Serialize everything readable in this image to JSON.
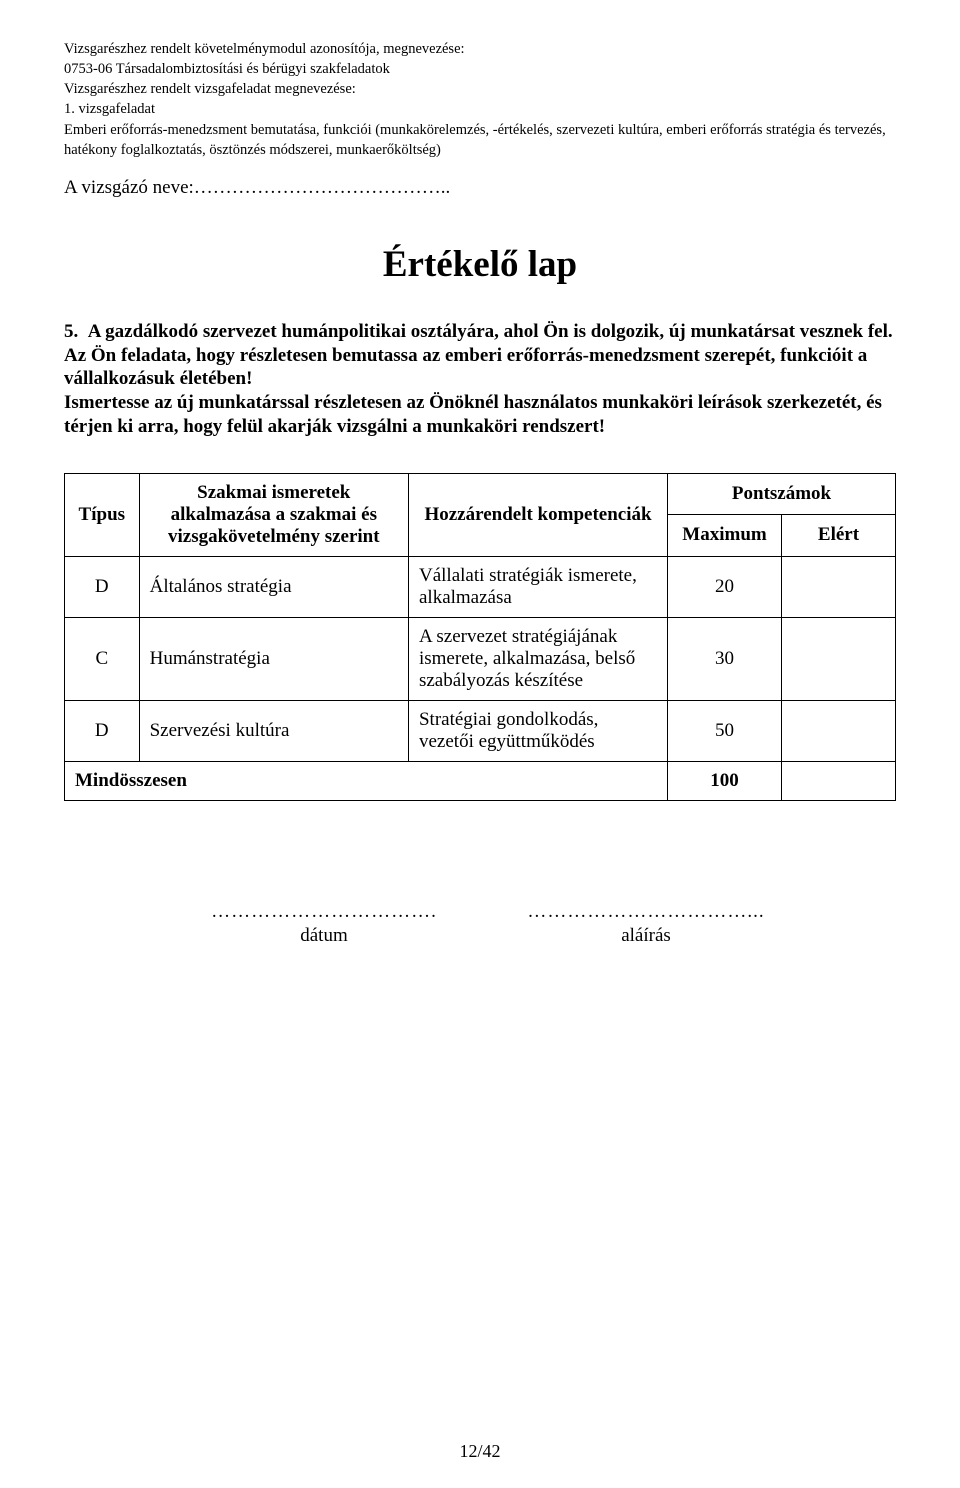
{
  "header": {
    "l1": "Vizsgarészhez rendelt követelménymodul azonosítója, megnevezése:",
    "l2": "0753-06 Társadalombiztosítási és bérügyi szakfeladatok",
    "l3": "Vizsgarészhez rendelt vizsgafeladat megnevezése:",
    "l4": "1. vizsgafeladat",
    "l5": "Emberi erőforrás-menedzsment bemutatása, funkciói (munkakörelemzés, -értékelés, szervezeti kultúra, emberi erőforrás stratégia és tervezés,",
    "l6": "hatékony foglalkoztatás, ösztönzés módszerei, munkaerőköltség)"
  },
  "nameLine": "A vizsgázó neve:…………………………………..",
  "title": "Értékelő lap",
  "task": {
    "num": "5.",
    "p1": "A gazdálkodó szervezet humánpolitikai osztályára, ahol Ön is dolgozik, új munkatársat vesznek fel. Az Ön feladata, hogy részletesen bemutassa az emberi erőforrás-menedzsment szerepét, funkcióit a vállalkozásuk életében!",
    "p2": "Ismertesse az új munkatárssal részletesen az Önöknél használatos munkaköri leírások szerkezetét, és térjen ki arra, hogy felül akarják vizsgálni a munkaköri rendszert!"
  },
  "table": {
    "headers": {
      "type": "Típus",
      "skill": "Szakmai ismeretek alkalmazása a szakmai és vizsgakövetelmény szerint",
      "comp": "Hozzárendelt kompetenciák",
      "scores": "Pontszámok",
      "max": "Maximum",
      "got": "Elért"
    },
    "rows": [
      {
        "type": "D",
        "skill": "Általános stratégia",
        "comp": "Vállalati stratégiák ismerete, alkalmazása",
        "max": "20"
      },
      {
        "type": "C",
        "skill": "Humánstratégia",
        "comp": "A szervezet stratégiájának ismerete, alkalmazása, belső szabályozás készítése",
        "max": "30"
      },
      {
        "type": "D",
        "skill": "Szervezési kultúra",
        "comp": "Stratégiai gondolkodás, vezetői együttműködés",
        "max": "50"
      }
    ],
    "total": {
      "label": "Mindösszesen",
      "value": "100"
    }
  },
  "signature": {
    "dateDots": "…………………………….",
    "dateLabel": "dátum",
    "signDots": "……………………………...",
    "signLabel": "aláírás"
  },
  "pageNumber": "12/42"
}
